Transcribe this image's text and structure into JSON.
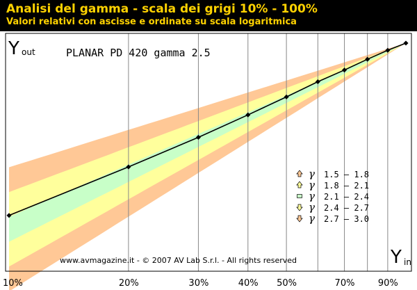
{
  "header": {
    "title": "Analisi del gamma - scala dei grigi 10% - 100%",
    "subtitle": "Valori relativi con ascisse e ordinate su scala logaritmica"
  },
  "colors": {
    "header_bg": "#000000",
    "header_text": "#ffd200",
    "band_outer": "#ffc896",
    "band_mid": "#ffff9c",
    "band_inner": "#c8ffc8",
    "curve": "#000000",
    "grid": "#888888"
  },
  "chart_data": {
    "type": "line",
    "title": "PLANAR PD 420 gamma 2.5",
    "xscale": "log",
    "yscale": "log",
    "xlim": [
      0.1,
      1.0
    ],
    "y_axis_label": {
      "main": "Y",
      "sub": "out"
    },
    "x_axis_label": {
      "main": "Y",
      "sub": "in"
    },
    "x_ticks": [
      {
        "value": 0.1,
        "label": "10%"
      },
      {
        "value": 0.2,
        "label": "20%"
      },
      {
        "value": 0.3,
        "label": "30%"
      },
      {
        "value": 0.4,
        "label": "40%"
      },
      {
        "value": 0.5,
        "label": "50%"
      },
      {
        "value": 0.7,
        "label": "70%"
      },
      {
        "value": 0.9,
        "label": "90%"
      }
    ],
    "x_minor_gridlines": [
      0.6,
      0.8
    ],
    "bands": [
      {
        "gamma": [
          1.5,
          1.8
        ],
        "marker": "arrow-up",
        "color": "#ffc896",
        "label": "1.5 – 1.8"
      },
      {
        "gamma": [
          1.8,
          2.1
        ],
        "marker": "arrow-up",
        "color": "#ffff9c",
        "label": "1.8 – 2.1"
      },
      {
        "gamma": [
          2.1,
          2.4
        ],
        "marker": "square",
        "color": "#c8ffc8",
        "label": "2.1 – 2.4"
      },
      {
        "gamma": [
          2.4,
          2.7
        ],
        "marker": "arrow-down",
        "color": "#ffff9c",
        "label": "2.4 – 2.7"
      },
      {
        "gamma": [
          2.7,
          3.0
        ],
        "marker": "arrow-down",
        "color": "#ffc896",
        "label": "2.7 – 3.0"
      }
    ],
    "legend_symbol": "γ",
    "legend_position": "right",
    "series": [
      {
        "x": [
          0.1,
          0.2,
          0.3,
          0.4,
          0.5,
          0.6,
          0.7,
          0.8,
          0.9,
          1.0
        ],
        "y": [
          0.012,
          0.0417,
          0.0891,
          0.1585,
          0.2512,
          0.3715,
          0.5012,
          0.6607,
          0.8318,
          1.0
        ]
      }
    ]
  },
  "footer": {
    "copyright": "www.avmagazine.it - © 2007 AV Lab S.r.l. - All rights reserved"
  }
}
